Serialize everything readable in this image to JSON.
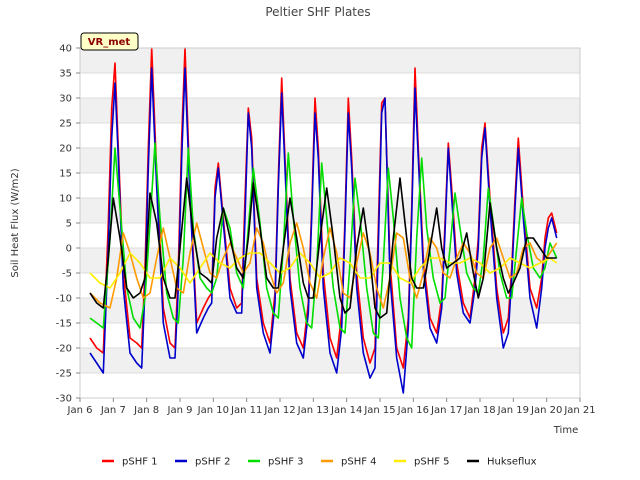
{
  "chart_data": {
    "type": "line",
    "title": "Peltier SHF Plates",
    "xlabel": "Time",
    "ylabel": "Soil Heat Flux (W/m2)",
    "site_label": "VR_met",
    "xlim": [
      6,
      21
    ],
    "ylim": [
      -30,
      40
    ],
    "x_ticks": [
      {
        "value": 6,
        "label": "Jan 6"
      },
      {
        "value": 7,
        "label": "Jan 7"
      },
      {
        "value": 8,
        "label": "Jan 8"
      },
      {
        "value": 9,
        "label": "Jan 9"
      },
      {
        "value": 10,
        "label": "Jan 10"
      },
      {
        "value": 11,
        "label": "Jan 11"
      },
      {
        "value": 12,
        "label": "Jan 12"
      },
      {
        "value": 13,
        "label": "Jan 13"
      },
      {
        "value": 14,
        "label": "Jan 14"
      },
      {
        "value": 15,
        "label": "Jan 15"
      },
      {
        "value": 16,
        "label": "Jan 16"
      },
      {
        "value": 17,
        "label": "Jan 17"
      },
      {
        "value": 18,
        "label": "Jan 18"
      },
      {
        "value": 19,
        "label": "Jan 19"
      },
      {
        "value": 20,
        "label": "Jan 20"
      },
      {
        "value": 21,
        "label": "Jan 21"
      }
    ],
    "y_ticks": [
      {
        "value": -30,
        "label": "-30"
      },
      {
        "value": -25,
        "label": "-25"
      },
      {
        "value": -20,
        "label": "-20"
      },
      {
        "value": -15,
        "label": "-15"
      },
      {
        "value": -10,
        "label": "-10"
      },
      {
        "value": -5,
        "label": "-5"
      },
      {
        "value": 0,
        "label": "0"
      },
      {
        "value": 5,
        "label": "5"
      },
      {
        "value": 10,
        "label": "10"
      },
      {
        "value": 15,
        "label": "15"
      },
      {
        "value": 20,
        "label": "20"
      },
      {
        "value": 25,
        "label": "25"
      },
      {
        "value": 30,
        "label": "30"
      },
      {
        "value": 35,
        "label": "35"
      },
      {
        "value": 40,
        "label": "40"
      }
    ],
    "series": [
      {
        "name": "pSHF 1",
        "color": "#ff0000",
        "x": [
          6.3,
          6.5,
          6.7,
          6.85,
          6.95,
          7.05,
          7.15,
          7.3,
          7.5,
          7.7,
          7.85,
          7.95,
          8.05,
          8.15,
          8.3,
          8.5,
          8.7,
          8.85,
          8.95,
          9.05,
          9.15,
          9.3,
          9.5,
          9.7,
          9.85,
          9.95,
          10.05,
          10.15,
          10.3,
          10.5,
          10.7,
          10.85,
          10.95,
          11.05,
          11.15,
          11.3,
          11.5,
          11.7,
          11.85,
          11.95,
          12.05,
          12.15,
          12.3,
          12.5,
          12.7,
          12.85,
          12.95,
          13.05,
          13.15,
          13.3,
          13.5,
          13.7,
          13.85,
          13.95,
          14.05,
          14.15,
          14.3,
          14.5,
          14.7,
          14.85,
          14.95,
          15.05,
          15.15,
          15.3,
          15.5,
          15.7,
          15.85,
          15.95,
          16.05,
          16.15,
          16.3,
          16.5,
          16.7,
          16.85,
          16.95,
          17.05,
          17.15,
          17.3,
          17.5,
          17.7,
          17.85,
          17.95,
          18.05,
          18.15,
          18.3,
          18.5,
          18.7,
          18.85,
          18.95,
          19.05,
          19.15,
          19.3,
          19.5,
          19.7,
          19.85,
          19.95,
          20.05,
          20.15,
          20.3
        ],
        "y": [
          -18,
          -20,
          -21,
          5,
          28,
          37,
          20,
          -5,
          -18,
          -19,
          -20,
          -4,
          20,
          40,
          15,
          -12,
          -19,
          -20,
          -4,
          22,
          40,
          12,
          -15,
          -12,
          -10,
          -9,
          12,
          17,
          6,
          -8,
          -12,
          -11,
          10,
          28,
          22,
          -6,
          -15,
          -19,
          -9,
          14,
          34,
          18,
          -6,
          -17,
          -20,
          -11,
          8,
          30,
          20,
          -5,
          -18,
          -22,
          -13,
          6,
          30,
          18,
          -5,
          -18,
          -23,
          -20,
          4,
          29,
          30,
          -3,
          -20,
          -24,
          -14,
          8,
          36,
          20,
          -2,
          -14,
          -17,
          -10,
          5,
          21,
          12,
          -3,
          -11,
          -14,
          -6,
          2,
          20,
          25,
          10,
          -8,
          -17,
          -14,
          -4,
          10,
          22,
          8,
          -8,
          -12,
          -6,
          2,
          6,
          7,
          3
        ]
      },
      {
        "name": "pSHF 2",
        "color": "#0000cc",
        "x": [
          6.3,
          6.5,
          6.7,
          6.85,
          6.95,
          7.05,
          7.15,
          7.3,
          7.5,
          7.7,
          7.85,
          7.95,
          8.05,
          8.15,
          8.3,
          8.5,
          8.7,
          8.85,
          8.95,
          9.05,
          9.15,
          9.3,
          9.5,
          9.7,
          9.85,
          9.95,
          10.05,
          10.15,
          10.3,
          10.5,
          10.7,
          10.85,
          10.95,
          11.05,
          11.15,
          11.3,
          11.5,
          11.7,
          11.85,
          11.95,
          12.05,
          12.15,
          12.3,
          12.5,
          12.7,
          12.85,
          12.95,
          13.05,
          13.15,
          13.3,
          13.5,
          13.7,
          13.85,
          13.95,
          14.05,
          14.15,
          14.3,
          14.5,
          14.7,
          14.85,
          14.95,
          15.05,
          15.15,
          15.3,
          15.5,
          15.7,
          15.85,
          15.95,
          16.05,
          16.15,
          16.3,
          16.5,
          16.7,
          16.85,
          16.95,
          17.05,
          17.15,
          17.3,
          17.5,
          17.7,
          17.85,
          17.95,
          18.05,
          18.15,
          18.3,
          18.5,
          18.7,
          18.85,
          18.95,
          19.05,
          19.15,
          19.3,
          19.5,
          19.7,
          19.85,
          19.95,
          20.05,
          20.15,
          20.3
        ],
        "y": [
          -21,
          -23,
          -25,
          0,
          22,
          33,
          18,
          -8,
          -21,
          -23,
          -24,
          -8,
          16,
          36,
          12,
          -15,
          -22,
          -22,
          -8,
          18,
          36,
          10,
          -17,
          -14,
          -12,
          -11,
          10,
          16,
          5,
          -10,
          -13,
          -13,
          6,
          27,
          20,
          -8,
          -17,
          -21,
          -11,
          12,
          31,
          16,
          -8,
          -19,
          -22,
          -13,
          6,
          27,
          18,
          -8,
          -21,
          -25,
          -16,
          4,
          27,
          16,
          -8,
          -21,
          -26,
          -24,
          0,
          27,
          30,
          -6,
          -22,
          -29,
          -16,
          6,
          32,
          18,
          -4,
          -16,
          -19,
          -12,
          3,
          20,
          10,
          -5,
          -13,
          -15,
          -8,
          0,
          18,
          24,
          8,
          -10,
          -20,
          -17,
          -6,
          8,
          20,
          6,
          -10,
          -16,
          -8,
          0,
          4,
          6,
          2
        ]
      },
      {
        "name": "pSHF 3",
        "color": "#00dd00",
        "x": [
          6.3,
          6.5,
          6.7,
          6.9,
          7.05,
          7.2,
          7.4,
          7.6,
          7.8,
          7.95,
          8.1,
          8.25,
          8.4,
          8.6,
          8.8,
          8.95,
          9.1,
          9.25,
          9.4,
          9.6,
          9.8,
          9.95,
          10.1,
          10.3,
          10.5,
          10.7,
          10.9,
          11.05,
          11.2,
          11.4,
          11.6,
          11.8,
          11.95,
          12.1,
          12.25,
          12.4,
          12.6,
          12.8,
          12.95,
          13.1,
          13.25,
          13.4,
          13.6,
          13.8,
          13.95,
          14.1,
          14.25,
          14.4,
          14.6,
          14.8,
          14.95,
          15.1,
          15.25,
          15.4,
          15.6,
          15.8,
          15.95,
          16.1,
          16.25,
          16.4,
          16.6,
          16.8,
          16.95,
          17.1,
          17.25,
          17.4,
          17.6,
          17.8,
          17.95,
          18.1,
          18.25,
          18.4,
          18.6,
          18.8,
          18.95,
          19.1,
          19.25,
          19.4,
          19.6,
          19.8,
          19.95,
          20.1,
          20.3
        ],
        "y": [
          -14,
          -15,
          -16,
          2,
          20,
          8,
          -8,
          -14,
          -16,
          -10,
          5,
          21,
          6,
          -9,
          -14,
          -15,
          -2,
          20,
          4,
          -6,
          -8,
          -9,
          -6,
          8,
          4,
          -5,
          -8,
          4,
          16,
          5,
          -8,
          -13,
          -14,
          0,
          19,
          6,
          -8,
          -15,
          -16,
          -4,
          17,
          6,
          -8,
          -16,
          -17,
          -3,
          14,
          6,
          -8,
          -17,
          -18,
          -3,
          16,
          6,
          -10,
          -18,
          -20,
          2,
          18,
          4,
          -6,
          -11,
          -10,
          0,
          11,
          4,
          -5,
          -8,
          -9,
          -2,
          12,
          5,
          -5,
          -10,
          -10,
          0,
          10,
          3,
          -4,
          -6,
          -4,
          1,
          -2
        ]
      },
      {
        "name": "pSHF 4",
        "color": "#ff9900",
        "x": [
          6.3,
          6.6,
          6.9,
          7.1,
          7.3,
          7.5,
          7.7,
          7.9,
          8.1,
          8.3,
          8.5,
          8.7,
          8.9,
          9.1,
          9.3,
          9.5,
          9.7,
          9.9,
          10.1,
          10.3,
          10.5,
          10.7,
          10.9,
          11.1,
          11.3,
          11.5,
          11.7,
          11.9,
          12.1,
          12.3,
          12.5,
          12.7,
          12.9,
          13.1,
          13.3,
          13.5,
          13.7,
          13.9,
          14.1,
          14.3,
          14.5,
          14.7,
          14.9,
          15.1,
          15.3,
          15.5,
          15.7,
          15.9,
          16.1,
          16.3,
          16.5,
          16.7,
          16.9,
          17.1,
          17.3,
          17.5,
          17.7,
          17.9,
          18.1,
          18.3,
          18.5,
          18.7,
          18.9,
          19.1,
          19.3,
          19.5,
          19.7,
          19.9,
          20.1,
          20.3
        ],
        "y": [
          -9,
          -11,
          -12,
          -6,
          3,
          -1,
          -6,
          -10,
          -9,
          -2,
          4,
          -2,
          -8,
          -9,
          -1,
          5,
          0,
          -5,
          -6,
          -2,
          1,
          -2,
          -5,
          -3,
          4,
          1,
          -5,
          -9,
          -7,
          1,
          5,
          0,
          -7,
          -10,
          -2,
          4,
          -1,
          -9,
          -10,
          -3,
          3,
          -1,
          -8,
          -12,
          -6,
          3,
          2,
          -6,
          -10,
          -5,
          2,
          0,
          -5,
          -6,
          -2,
          1,
          -1,
          -5,
          -6,
          0,
          2,
          -2,
          -6,
          -5,
          0,
          1,
          -2,
          -3,
          -1,
          1
        ]
      },
      {
        "name": "pSHF 5",
        "color": "#ffee00",
        "x": [
          6.3,
          6.6,
          6.9,
          7.2,
          7.5,
          7.8,
          8.1,
          8.4,
          8.7,
          9.0,
          9.3,
          9.6,
          9.9,
          10.2,
          10.5,
          10.8,
          11.1,
          11.4,
          11.7,
          12.0,
          12.3,
          12.6,
          12.9,
          13.2,
          13.5,
          13.8,
          14.1,
          14.4,
          14.7,
          15.0,
          15.3,
          15.6,
          15.9,
          16.2,
          16.5,
          16.8,
          17.1,
          17.4,
          17.7,
          18.0,
          18.3,
          18.6,
          18.9,
          19.2,
          19.5,
          19.8,
          20.1,
          20.3
        ],
        "y": [
          -5,
          -7,
          -8,
          -5,
          -1,
          -3,
          -6,
          -6,
          -2,
          -4,
          -7,
          -4,
          -1,
          -3,
          -4,
          -2,
          -1,
          -1,
          -3,
          -5,
          -4,
          -1,
          -3,
          -6,
          -5,
          -2,
          -3,
          -6,
          -6,
          -3,
          -3,
          -6,
          -7,
          -4,
          -2,
          -2,
          -3,
          -3,
          -2,
          -3,
          -5,
          -4,
          -2,
          -3,
          -4,
          -3,
          -2,
          -3
        ]
      },
      {
        "name": "Hukseflux",
        "color": "#000000",
        "x": [
          6.3,
          6.5,
          6.7,
          6.85,
          7.0,
          7.2,
          7.4,
          7.6,
          7.8,
          7.95,
          8.1,
          8.3,
          8.5,
          8.7,
          8.85,
          9.0,
          9.2,
          9.4,
          9.6,
          9.8,
          9.95,
          10.1,
          10.3,
          10.5,
          10.7,
          10.9,
          11.05,
          11.2,
          11.4,
          11.6,
          11.8,
          11.95,
          12.1,
          12.3,
          12.5,
          12.7,
          12.85,
          13.0,
          13.2,
          13.4,
          13.6,
          13.8,
          13.95,
          14.1,
          14.3,
          14.5,
          14.7,
          14.85,
          15.0,
          15.2,
          15.4,
          15.6,
          15.8,
          15.95,
          16.1,
          16.3,
          16.5,
          16.7,
          16.85,
          17.0,
          17.2,
          17.4,
          17.6,
          17.8,
          17.95,
          18.1,
          18.3,
          18.5,
          18.7,
          18.85,
          19.0,
          19.2,
          19.4,
          19.6,
          19.8,
          20.0,
          20.2,
          20.3
        ],
        "y": [
          -9,
          -11,
          -12,
          -2,
          10,
          2,
          -8,
          -10,
          -9,
          -6,
          11,
          5,
          -6,
          -10,
          -10,
          0,
          14,
          3,
          -5,
          -6,
          -7,
          2,
          8,
          2,
          -4,
          -6,
          2,
          13,
          4,
          -6,
          -8,
          -8,
          0,
          10,
          2,
          -7,
          -10,
          -10,
          2,
          12,
          2,
          -10,
          -13,
          -12,
          0,
          8,
          -2,
          -12,
          -14,
          -13,
          2,
          14,
          2,
          -6,
          -8,
          -8,
          0,
          8,
          0,
          -4,
          -3,
          -2,
          3,
          -5,
          -10,
          -6,
          9,
          0,
          -6,
          -9,
          -7,
          -4,
          2,
          2,
          0,
          -2,
          -2,
          -2
        ]
      }
    ]
  }
}
